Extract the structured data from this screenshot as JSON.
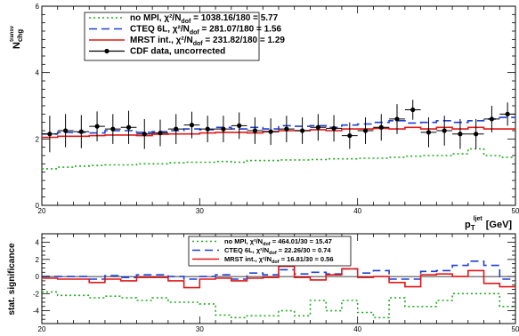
{
  "chart_data": [
    {
      "type": "line",
      "ylabel": "N",
      "ylabel_sub": "chg",
      "ylabel_sup": "transv",
      "xlabel": "p",
      "xlabel_sub": "T",
      "xlabel_sup": "ljet",
      "xlabel_unit": "[GeV]",
      "xlim": [
        20,
        50
      ],
      "ylim": [
        0,
        6
      ],
      "xticks": [
        "20",
        "30",
        "40",
        "50"
      ],
      "yticks": [
        "0",
        "2",
        "4",
        "6"
      ],
      "legend_position": "top-left",
      "bin_edges": [
        20,
        21,
        22,
        23,
        24,
        25,
        26,
        27,
        28,
        29,
        30,
        31,
        32,
        33,
        34,
        35,
        36,
        37,
        38,
        39,
        40,
        41,
        42,
        43,
        44,
        45,
        46,
        47,
        48,
        49,
        50
      ],
      "series": [
        {
          "key": "nompi",
          "name": "no MPI, χ²/N",
          "name_sub": "dof",
          "name_tail": " = 1038.16/180 = 5.77",
          "color": "#22aa22",
          "style": "dotted",
          "values": [
            1.1,
            1.15,
            1.18,
            1.2,
            1.22,
            1.22,
            1.25,
            1.25,
            1.28,
            1.3,
            1.3,
            1.32,
            1.3,
            1.35,
            1.35,
            1.37,
            1.37,
            1.38,
            1.4,
            1.4,
            1.42,
            1.42,
            1.45,
            1.48,
            1.5,
            1.5,
            1.55,
            1.7,
            1.5,
            1.45
          ]
        },
        {
          "key": "cteq",
          "name": "CTEQ 6L, χ²/N",
          "name_sub": "dof",
          "name_tail": " = 281.07/180 = 1.56",
          "color": "#1f3fd4",
          "style": "dashed",
          "values": [
            2.15,
            2.2,
            2.2,
            2.18,
            2.25,
            2.25,
            2.2,
            2.22,
            2.25,
            2.3,
            2.28,
            2.35,
            2.3,
            2.35,
            2.3,
            2.4,
            2.38,
            2.4,
            2.35,
            2.42,
            2.45,
            2.5,
            2.55,
            2.48,
            2.5,
            2.55,
            2.5,
            2.55,
            2.6,
            2.65
          ]
        },
        {
          "key": "mrst",
          "name": "MRST int., χ²/N",
          "name_sub": "dof",
          "name_tail": " = 231.82/180 = 1.29",
          "color": "#e01818",
          "style": "solid",
          "values": [
            2.05,
            2.08,
            2.08,
            2.1,
            2.12,
            2.12,
            2.1,
            2.14,
            2.15,
            2.15,
            2.18,
            2.2,
            2.2,
            2.18,
            2.22,
            2.25,
            2.25,
            2.28,
            2.25,
            2.3,
            2.3,
            2.32,
            2.3,
            2.35,
            2.3,
            2.35,
            2.3,
            2.35,
            2.3,
            2.3
          ]
        }
      ],
      "data_points": {
        "name": "CDF data, uncorrected",
        "color": "#000000",
        "x": [
          20.5,
          21.5,
          22.5,
          23.5,
          24.5,
          25.5,
          26.5,
          27.5,
          28.5,
          29.5,
          30.5,
          31.5,
          32.5,
          33.5,
          34.5,
          35.5,
          36.5,
          37.5,
          38.5,
          39.5,
          40.5,
          41.5,
          42.5,
          43.5,
          44.5,
          45.5,
          46.5,
          47.5,
          48.5,
          49.5
        ],
        "y": [
          2.15,
          2.25,
          2.22,
          2.38,
          2.3,
          2.35,
          2.15,
          2.18,
          2.3,
          2.42,
          2.3,
          2.3,
          2.4,
          2.25,
          2.22,
          2.3,
          2.25,
          2.35,
          2.32,
          2.1,
          2.25,
          2.35,
          2.6,
          2.88,
          2.2,
          2.25,
          2.15,
          2.15,
          2.6,
          2.75
        ],
        "err": [
          0.55,
          0.5,
          0.5,
          0.45,
          0.45,
          0.5,
          0.45,
          0.4,
          0.45,
          0.4,
          0.4,
          0.4,
          0.4,
          0.4,
          0.4,
          0.4,
          0.4,
          0.4,
          0.4,
          0.4,
          0.4,
          0.4,
          0.45,
          0.3,
          0.45,
          0.45,
          0.45,
          0.45,
          0.4,
          0.35
        ]
      }
    },
    {
      "type": "line",
      "ylabel": "stat. significance",
      "xlim": [
        20,
        50
      ],
      "ylim": [
        -5.5,
        5
      ],
      "xticks": [
        "20",
        "30",
        "40",
        "50"
      ],
      "yticks": [
        "-4",
        "-2",
        "0",
        "2",
        "4"
      ],
      "legend_position": "top-center",
      "bin_edges": [
        20,
        21,
        22,
        23,
        24,
        25,
        26,
        27,
        28,
        29,
        30,
        31,
        32,
        33,
        34,
        35,
        36,
        37,
        38,
        39,
        40,
        41,
        42,
        43,
        44,
        45,
        46,
        47,
        48,
        49,
        50
      ],
      "series": [
        {
          "key": "nompi",
          "name": "no MPI, χ²/N",
          "name_sub": "dof",
          "name_tail": " = 464.01/30 = 15.47",
          "color": "#22aa22",
          "style": "dotted",
          "values": [
            -1.8,
            -2.2,
            -2.2,
            -2.5,
            -2.3,
            -2.5,
            -2.8,
            -2.5,
            -3.0,
            -3.0,
            -3.2,
            -4.5,
            -4.8,
            -4.6,
            -4.6,
            -4.0,
            -4.6,
            -2.8,
            -4.0,
            -2.8,
            -4.2,
            -4.8,
            -2.5,
            -3.5,
            -3.5,
            -2.8,
            -2.0,
            -2.0,
            -2.0,
            -3.5
          ]
        },
        {
          "key": "cteq",
          "name": "CTEQ 6L, χ²/N",
          "name_sub": "dof",
          "name_tail": " = 22.26/30 = 0.74",
          "color": "#1f3fd4",
          "style": "dashed",
          "values": [
            0.0,
            0.0,
            0.0,
            -0.3,
            0.1,
            -0.1,
            0.2,
            0.2,
            0.0,
            -0.3,
            0.0,
            0.2,
            -0.3,
            0.4,
            0.2,
            0.8,
            0.3,
            0.5,
            0.3,
            0.9,
            0.4,
            0.7,
            -0.3,
            -0.3,
            0.6,
            0.7,
            1.3,
            1.8,
            1.3,
            -0.3
          ]
        },
        {
          "key": "mrst",
          "name": "MRST int., χ²/N",
          "name_sub": "dof",
          "name_tail": " = 16.81/30 = 0.56",
          "color": "#e01818",
          "style": "solid",
          "values": [
            -0.2,
            -0.3,
            -0.3,
            -0.7,
            -0.3,
            -0.5,
            -0.1,
            -0.1,
            -0.5,
            -1.3,
            -0.3,
            -0.2,
            -0.5,
            -0.2,
            -0.1,
            1.2,
            -0.1,
            -0.4,
            0.2,
            0.9,
            -0.1,
            0.0,
            -0.7,
            -1.2,
            0.2,
            0.3,
            0.0,
            0.7,
            -0.8,
            -1.2
          ]
        }
      ]
    }
  ]
}
